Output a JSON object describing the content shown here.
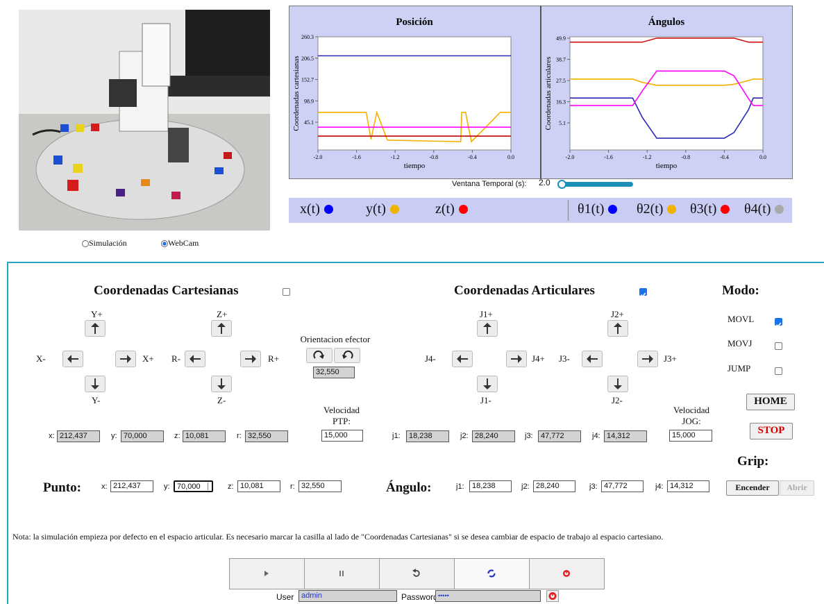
{
  "view": {
    "options": [
      "Simulación",
      "WebCam"
    ],
    "selected": "WebCam"
  },
  "charts": [
    {
      "type": "line",
      "title": "Posición",
      "ylabel": "Coordenadas cartesianas",
      "xlabel": "tiempo",
      "xlim": [
        -2.0,
        0.0
      ],
      "xticks": [
        {
          "value": -2,
          "label": "-2.0"
        },
        {
          "value": -1.6,
          "label": "-1.6"
        },
        {
          "value": -1.2,
          "label": "-1.2"
        },
        {
          "value": -0.8,
          "label": "-0.8"
        },
        {
          "value": -0.4,
          "label": "-0.4"
        },
        {
          "value": 0,
          "label": "0.0"
        }
      ],
      "ylim": [
        -24.8,
        260.3
      ],
      "yticks": [
        260.3,
        206.5,
        152.7,
        98.9,
        45.1
      ],
      "x": [
        -2.0,
        -1.5,
        -1.45,
        -1.39,
        -1.28,
        -0.52,
        -0.51,
        -0.47,
        -0.41,
        -0.11,
        0.0
      ],
      "series": [
        {
          "color": "#2a2ab8",
          "values": [
            212.437,
            212.437,
            212.437,
            212.437,
            212.437,
            212.437,
            212.437,
            212.437,
            212.437,
            212.437,
            212.437
          ]
        },
        {
          "color": "#f5b000",
          "values": [
            70,
            70,
            2,
            70,
            0,
            -4,
            70,
            70,
            -4,
            70,
            70
          ]
        },
        {
          "color": "#ff00ff",
          "values": [
            32.55,
            32.55,
            32.55,
            32.55,
            32.55,
            32.55,
            32.55,
            32.55,
            32.55,
            32.55,
            32.55
          ]
        },
        {
          "color": "#c00000",
          "values": [
            10.081,
            10.081,
            10.081,
            10.081,
            10.081,
            10.081,
            10.081,
            10.081,
            10.081,
            10.081,
            10.081
          ]
        }
      ],
      "legend": [
        {
          "label": "x(t)",
          "color": "#0000ff"
        },
        {
          "label": "y(t)",
          "color": "#f0b400"
        },
        {
          "label": "z(t)",
          "color": "#ff0000"
        }
      ]
    },
    {
      "type": "line",
      "title": "Ángulos",
      "ylabel": "Coordenadas articulares",
      "xlabel": "tiempo",
      "xlim": [
        -2.0,
        0.0
      ],
      "xticks": [
        {
          "value": -2,
          "label": "-2.0"
        },
        {
          "value": -1.6,
          "label": "-1.6"
        },
        {
          "value": -1.2,
          "label": "-1.2"
        },
        {
          "value": -0.8,
          "label": "-0.8"
        },
        {
          "value": -0.4,
          "label": "-0.4"
        },
        {
          "value": 0,
          "label": "0.0"
        }
      ],
      "ylim": [
        -9.2,
        50.6
      ],
      "yticks": [
        49.9,
        38.7,
        27.5,
        16.3,
        5.1
      ],
      "x": [
        -2.0,
        -1.35,
        -1.25,
        -1.1,
        -0.4,
        -0.3,
        -0.15,
        -0.1,
        0.0
      ],
      "series": [
        {
          "color": "#2a2ab8",
          "values": [
            18.238,
            18.238,
            8,
            -3,
            -3,
            0,
            12,
            18.238,
            18.238
          ]
        },
        {
          "color": "#f5b000",
          "values": [
            28.24,
            28.24,
            26.5,
            25,
            25,
            25.5,
            27.5,
            28.24,
            28.24
          ]
        },
        {
          "color": "#d01010",
          "values": [
            47.772,
            47.772,
            47.772,
            49.9,
            49.9,
            49.9,
            47.772,
            47.772,
            47.772
          ]
        },
        {
          "color": "#ff00ff",
          "values": [
            14.312,
            14.312,
            22,
            32.5,
            32.5,
            30,
            18,
            14.312,
            14.312
          ]
        }
      ],
      "legend": [
        {
          "label": "θ1(t)",
          "color": "#0000ff"
        },
        {
          "label": "θ2(t)",
          "color": "#f0b400"
        },
        {
          "label": "θ3(t)",
          "color": "#ff0000"
        },
        {
          "label": "θ4(t)",
          "color": "#aaaaaa"
        }
      ]
    }
  ],
  "time_window": {
    "label": "Ventana Temporal (s):",
    "value": "2.0"
  },
  "cartesian": {
    "title": "Coordenadas Cartesianas",
    "enabled": false,
    "jog": {
      "y_plus": "Y+",
      "x_minus": "X-",
      "x_plus": "X+",
      "y_minus": "Y-",
      "z_plus": "Z+",
      "r_minus": "R-",
      "r_plus": "R+",
      "z_minus": "Z-"
    },
    "orientation": {
      "label": "Orientacion efector",
      "value": "32,550"
    },
    "speed": {
      "label": [
        "Velocidad",
        "PTP:"
      ],
      "value": "15,000"
    },
    "readouts": [
      {
        "label": "x:",
        "value": "212,437"
      },
      {
        "label": "y:",
        "value": "70,000"
      },
      {
        "label": "z:",
        "value": "10,081"
      },
      {
        "label": "r:",
        "value": "32,550"
      }
    ]
  },
  "articular": {
    "title": "Coordenadas Articulares",
    "enabled": true,
    "jog": {
      "j1_plus": "J1+",
      "j4_minus": "J4-",
      "j4_plus": "J4+",
      "j1_minus": "J1-",
      "j2_plus": "J2+",
      "j3_minus": "J3-",
      "j3_plus": "J3+",
      "j2_minus": "J2-"
    },
    "speed": {
      "label": [
        "Velocidad",
        "JOG:"
      ],
      "value": "15,000"
    },
    "readouts": [
      {
        "label": "j1:",
        "value": "18,238"
      },
      {
        "label": "j2:",
        "value": "28,240"
      },
      {
        "label": "j3:",
        "value": "47,772"
      },
      {
        "label": "j4:",
        "value": "14,312"
      }
    ]
  },
  "mode": {
    "title": "Modo:",
    "options": [
      {
        "label": "MOVL",
        "checked": true
      },
      {
        "label": "MOVJ",
        "checked": false
      },
      {
        "label": "JUMP",
        "checked": false
      }
    ]
  },
  "home": "HOME",
  "stop": "STOP",
  "grip": {
    "title": "Grip:",
    "buttons": [
      "Encender",
      "Abrir"
    ]
  },
  "point": {
    "title": "Punto:",
    "fields": [
      {
        "label": "x:",
        "value": "212,437"
      },
      {
        "label": "y:",
        "value": "70,000"
      },
      {
        "label": "z:",
        "value": "10,081"
      },
      {
        "label": "r:",
        "value": "32,550"
      }
    ]
  },
  "angle": {
    "title": "Ángulo:",
    "fields": [
      {
        "label": "j1:",
        "value": "18,238"
      },
      {
        "label": "j2:",
        "value": "28,240"
      },
      {
        "label": "j3:",
        "value": "47,772"
      },
      {
        "label": "j4:",
        "value": "14,312"
      }
    ]
  },
  "note": "Nota: la simulación empieza por defecto en el espacio articular. Es necesario marcar la casilla al lado de \"Coordenadas Cartesianas\" si se desea cambiar de espacio de trabajo al espacio cartesiano.",
  "login": {
    "user_label": "User",
    "user": "admin",
    "password_label": "Password",
    "password": "•••••"
  }
}
